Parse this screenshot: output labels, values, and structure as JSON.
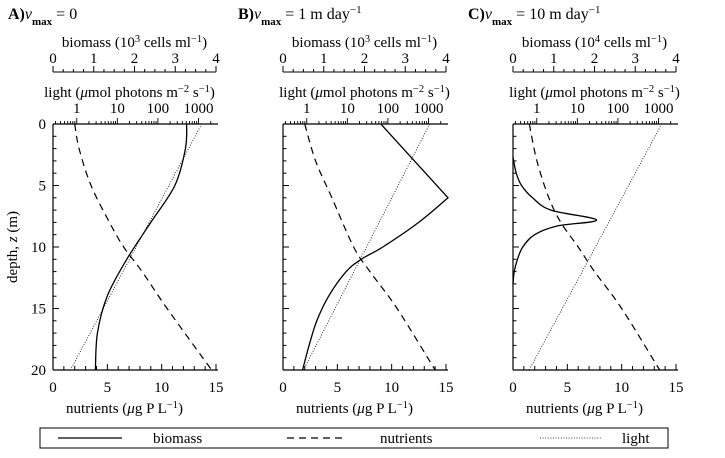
{
  "colors": {
    "ink": "#000000",
    "background": "#ffffff"
  },
  "y_axis": {
    "label_prefix": "depth, ",
    "label_var": "z",
    "label_suffix": " (m)",
    "ticks": [
      "0",
      "5",
      "10",
      "15",
      "20"
    ]
  },
  "chart_data": [
    {
      "type": "line",
      "panel": {
        "letter": "A)",
        "var": "v",
        "sub": "max",
        "eq": " = 0",
        "unit_sup": ""
      },
      "biomass_axis": {
        "pre": "biomass (10",
        "exp": "3",
        "mid": " cells ml",
        "exp2": "−1",
        "post": ")",
        "ticks": [
          "0",
          "1",
          "2",
          "3",
          "4"
        ],
        "range": [
          0,
          4
        ]
      },
      "light_axis": {
        "pre": "light (",
        "mu": "μ",
        "mid": "mol photons m",
        "exp": "−2",
        "mid2": " s",
        "exp2": "−1",
        "post": ")",
        "ticks": [
          "1",
          "10",
          "100",
          "1000"
        ],
        "scale": "log",
        "range": [
          0.26,
          2700
        ]
      },
      "nutrient_axis": {
        "pre": "nutrients (",
        "mu": "μ",
        "mid": "g P L",
        "exp": "−1",
        "post": ")",
        "ticks": [
          "0",
          "5",
          "10",
          "15"
        ],
        "range": [
          0,
          15
        ]
      },
      "depth_range": [
        0,
        20
      ],
      "series": [
        {
          "name": "biomass",
          "style": "solid",
          "depth": [
            0,
            2,
            5,
            8,
            11,
            14,
            17,
            20
          ],
          "values": [
            3.28,
            3.25,
            2.99,
            2.4,
            1.81,
            1.33,
            1.09,
            1.04
          ]
        },
        {
          "name": "nutrients",
          "style": "dashed",
          "depth": [
            0,
            2,
            5,
            8,
            10,
            12,
            15,
            20
          ],
          "values": [
            2.0,
            2.4,
            3.5,
            5.2,
            6.5,
            8.2,
            10.5,
            14.6
          ]
        },
        {
          "name": "light",
          "style": "dotted",
          "depth": [
            0,
            20
          ],
          "values": [
            1200,
            0.7
          ]
        }
      ]
    },
    {
      "type": "line",
      "panel": {
        "letter": "B)",
        "var": "v",
        "sub": "max",
        "eq": " = 1 m day",
        "unit_sup": "−1"
      },
      "biomass_axis": {
        "pre": "biomass (10",
        "exp": "3",
        "mid": " cells ml",
        "exp2": "−1",
        "post": ")",
        "ticks": [
          "0",
          "1",
          "2",
          "3",
          "4"
        ],
        "range": [
          0,
          4
        ]
      },
      "light_axis": {
        "pre": "light (",
        "mu": "μ",
        "mid": "mol photons m",
        "exp": "−2",
        "mid2": " s",
        "exp2": "−1",
        "post": ")",
        "ticks": [
          "1",
          "10",
          "100",
          "1000"
        ],
        "scale": "log",
        "range": [
          0.26,
          2700
        ]
      },
      "nutrient_axis": {
        "pre": "nutrients (",
        "mu": "μ",
        "mid": "g P L",
        "exp": "−1",
        "post": ")",
        "ticks": [
          "0",
          "5",
          "10",
          "15"
        ],
        "range": [
          0,
          15
        ]
      },
      "depth_range": [
        0,
        20
      ],
      "series": [
        {
          "name": "biomass",
          "style": "solid",
          "depth": [
            0,
            6,
            8,
            10,
            11,
            12,
            14,
            16,
            18,
            20
          ],
          "values": [
            2.4,
            4.05,
            3.33,
            2.45,
            1.92,
            1.55,
            1.12,
            0.83,
            0.64,
            0.48
          ]
        },
        {
          "name": "nutrients",
          "style": "dashed",
          "depth": [
            0,
            3,
            6,
            10,
            12,
            15,
            20
          ],
          "values": [
            2.0,
            3.0,
            4.5,
            6.5,
            8.0,
            10.5,
            14.0
          ]
        },
        {
          "name": "light",
          "style": "dotted",
          "depth": [
            0,
            20
          ],
          "values": [
            1070,
            0.83
          ]
        }
      ]
    },
    {
      "type": "line",
      "panel": {
        "letter": "C)",
        "var": "v",
        "sub": "max",
        "eq": " = 10 m day",
        "unit_sup": "−1"
      },
      "biomass_axis": {
        "pre": "biomass (10",
        "exp": "4",
        "mid": " cells ml",
        "exp2": "−1",
        "post": ")",
        "ticks": [
          "0",
          "1",
          "2",
          "3",
          "4"
        ],
        "range": [
          0,
          4
        ]
      },
      "light_axis": {
        "pre": "light (",
        "mu": "μ",
        "mid": "mol photons m",
        "exp": "−2",
        "mid2": " s",
        "exp2": "−1",
        "post": ")",
        "ticks": [
          "1",
          "10",
          "100",
          "1000"
        ],
        "scale": "log",
        "range": [
          0.26,
          2700
        ]
      },
      "nutrient_axis": {
        "pre": "nutrients (",
        "mu": "μ",
        "mid": "g P L",
        "exp": "−1",
        "post": ")",
        "ticks": [
          "0",
          "5",
          "10",
          "15"
        ],
        "range": [
          0,
          15
        ]
      },
      "depth_range": [
        0,
        20
      ],
      "series": [
        {
          "name": "biomass",
          "style": "solid",
          "depth": [
            2.7,
            4,
            5,
            6,
            7,
            7.8,
            8.3,
            9,
            10,
            11,
            12,
            13
          ],
          "values": [
            0,
            0.08,
            0.21,
            0.48,
            0.93,
            2.05,
            1.07,
            0.53,
            0.24,
            0.11,
            0.03,
            0
          ]
        },
        {
          "name": "nutrients",
          "style": "dashed",
          "depth": [
            0,
            3,
            6,
            8,
            10,
            12,
            15,
            20
          ],
          "values": [
            1.5,
            2.2,
            3.3,
            4.4,
            6.0,
            7.5,
            10.0,
            13.5
          ]
        },
        {
          "name": "light",
          "style": "dotted",
          "depth": [
            0,
            20
          ],
          "values": [
            1200,
            0.65
          ]
        }
      ]
    }
  ],
  "legend": {
    "position": "bottom",
    "items": [
      {
        "label": "biomass",
        "style": "solid"
      },
      {
        "label": "nutrients",
        "style": "dashed"
      },
      {
        "label": "light",
        "style": "dotted"
      }
    ]
  }
}
